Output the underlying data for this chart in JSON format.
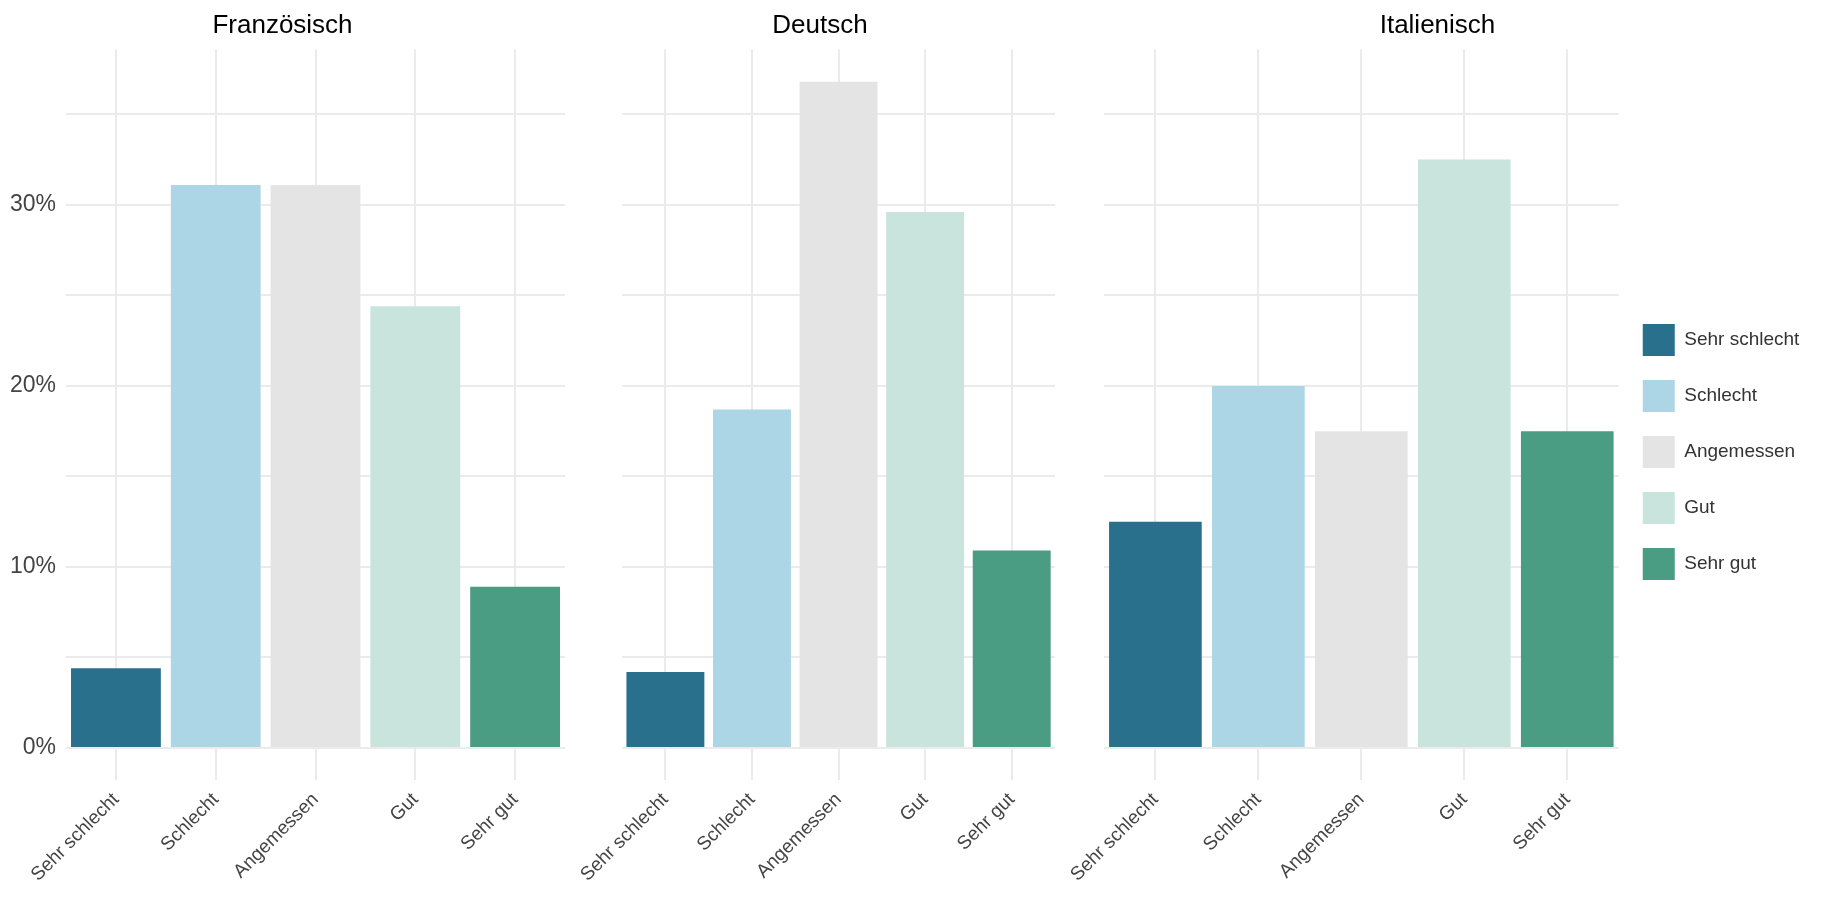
{
  "chart_data": [
    {
      "type": "bar",
      "title": "Französisch",
      "categories": [
        "Sehr schlecht",
        "Schlecht",
        "Angemessen",
        "Gut",
        "Sehr gut"
      ],
      "values": [
        4.4,
        31.1,
        31.1,
        24.4,
        8.9
      ],
      "colors": [
        "#28708c",
        "#acd6e6",
        "#e4e4e4",
        "#c8e4dc",
        "#4a9c82"
      ],
      "ylim": [
        -1.8,
        38.6
      ],
      "yticks": [
        {
          "value": 0,
          "label": "0%"
        },
        {
          "value": 5,
          "label": null
        },
        {
          "value": 10,
          "label": "10%"
        },
        {
          "value": 15,
          "label": null
        },
        {
          "value": 20,
          "label": "20%"
        },
        {
          "value": 25,
          "label": null
        },
        {
          "value": 30,
          "label": "30%"
        },
        {
          "value": 35,
          "label": null
        }
      ],
      "grid": true
    },
    {
      "type": "bar",
      "title": "Deutsch",
      "categories": [
        "Sehr schlecht",
        "Schlecht",
        "Angemessen",
        "Gut",
        "Sehr gut"
      ],
      "values": [
        4.2,
        18.7,
        36.8,
        29.6,
        10.9
      ],
      "colors": [
        "#28708c",
        "#acd6e6",
        "#e4e4e4",
        "#c8e4dc",
        "#4a9c82"
      ],
      "ylim": [
        -1.8,
        38.6
      ],
      "yticks": [
        0,
        5,
        10,
        15,
        20,
        25,
        30,
        35
      ],
      "grid": true,
      "tick_labels": "x"
    },
    {
      "type": "bar",
      "title": "Italienisch",
      "categories": [
        "Sehr schlecht",
        "Schlecht",
        "Angemessen",
        "Gut",
        "Sehr gut"
      ],
      "series": [
        {
          "name": "Sehr schlecht",
          "color": "#28708c",
          "values": [
            12.5,
            null,
            null,
            null,
            null
          ]
        },
        {
          "name": "Schlecht",
          "color": "#acd6e6",
          "values": [
            null,
            20.0,
            null,
            null,
            null
          ]
        },
        {
          "name": "Angemessen",
          "color": "#e4e4e4",
          "values": [
            null,
            null,
            17.5,
            null,
            null
          ]
        },
        {
          "name": "Gut",
          "color": "#c8e4dc",
          "values": [
            null,
            null,
            null,
            32.5,
            null
          ]
        },
        {
          "name": "Sehr gut",
          "color": "#4a9c82",
          "values": [
            null,
            null,
            null,
            null,
            17.5
          ]
        }
      ],
      "ylim": [
        -1.8,
        38.6
      ],
      "yticks": [
        0,
        5,
        10,
        15,
        20,
        25,
        30,
        35
      ],
      "grid": true,
      "tick_labels": "x",
      "legend": "right"
    }
  ]
}
